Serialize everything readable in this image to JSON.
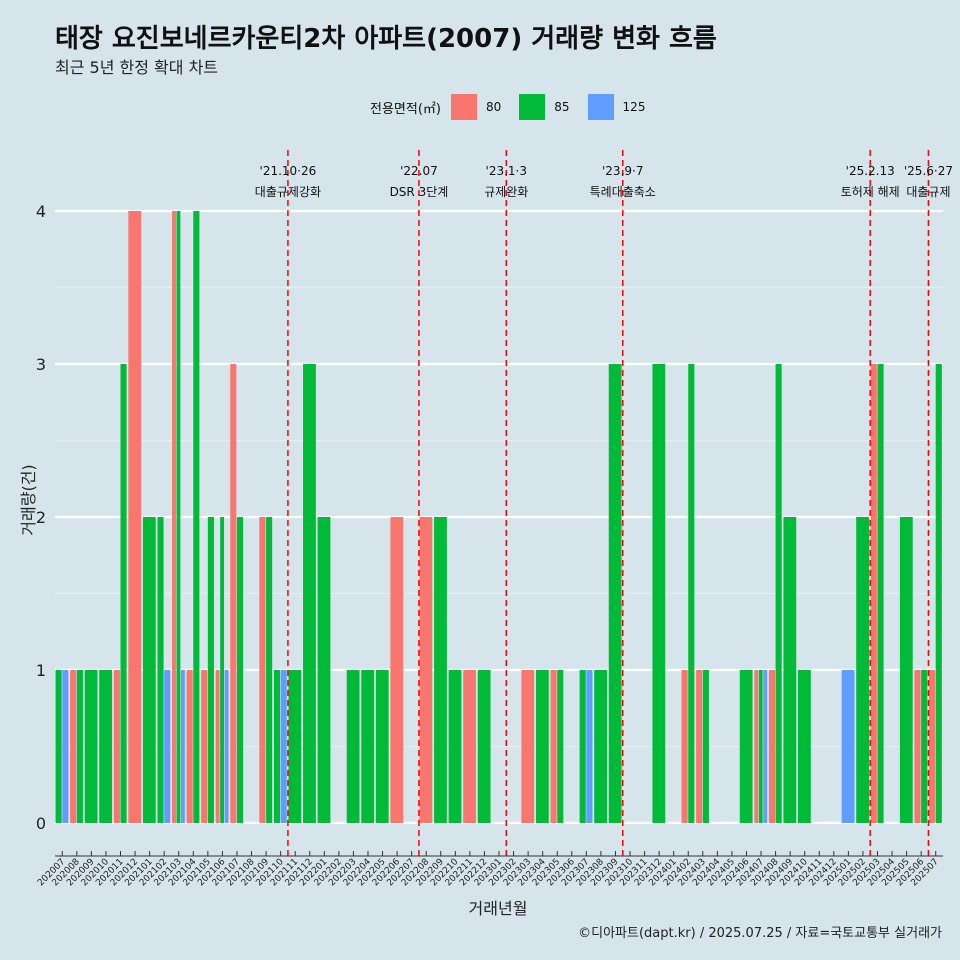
{
  "page": {
    "title": "태장 요진보네르카운티2차 아파트(2007) 거래량 변화 흐름",
    "subtitle": "최근 5년 한정 확대 차트",
    "caption": "©디아파트(dapt.kr) / 2025.07.25 / 자료=국토교통부 실거래가"
  },
  "legend": {
    "title": "전용면적(㎡)",
    "items": [
      {
        "name": "80",
        "color": "#F8766D"
      },
      {
        "name": "85",
        "color": "#00BA38"
      },
      {
        "name": "125",
        "color": "#619CFF"
      }
    ]
  },
  "chart_data": {
    "type": "bar",
    "stacking": "dodge",
    "xlabel": "거래년월",
    "ylabel": "거래량(건)",
    "ylim": [
      0,
      4
    ],
    "yticks": [
      0,
      1,
      2,
      3,
      4
    ],
    "grid": "horizontal major lines",
    "legend_position": "top",
    "categories": [
      "202007",
      "202008",
      "202009",
      "202010",
      "202011",
      "202012",
      "202101",
      "202102",
      "202103",
      "202104",
      "202105",
      "202106",
      "202107",
      "202108",
      "202109",
      "202110",
      "202111",
      "202112",
      "202201",
      "202202",
      "202203",
      "202204",
      "202205",
      "202206",
      "202207",
      "202208",
      "202209",
      "202210",
      "202211",
      "202212",
      "202301",
      "202302",
      "202303",
      "202304",
      "202305",
      "202306",
      "202307",
      "202308",
      "202309",
      "202310",
      "202311",
      "202312",
      "202401",
      "202402",
      "202403",
      "202404",
      "202405",
      "202406",
      "202407",
      "202408",
      "202409",
      "202410",
      "202411",
      "202412",
      "202501",
      "202502",
      "202503",
      "202504",
      "202505",
      "202506",
      "202507"
    ],
    "bars": [
      {
        "month": "202007",
        "groups": [
          {
            "area": "85",
            "value": 1
          },
          {
            "area": "125",
            "value": 1
          }
        ]
      },
      {
        "month": "202008",
        "groups": [
          {
            "area": "80",
            "value": 1
          },
          {
            "area": "85",
            "value": 1
          }
        ]
      },
      {
        "month": "202009",
        "groups": [
          {
            "area": "85",
            "value": 1
          }
        ]
      },
      {
        "month": "202010",
        "groups": [
          {
            "area": "85",
            "value": 1
          }
        ]
      },
      {
        "month": "202011",
        "groups": [
          {
            "area": "80",
            "value": 1
          },
          {
            "area": "85",
            "value": 3
          }
        ]
      },
      {
        "month": "202012",
        "groups": [
          {
            "area": "80",
            "value": 4
          }
        ]
      },
      {
        "month": "202101",
        "groups": [
          {
            "area": "85",
            "value": 2
          }
        ]
      },
      {
        "month": "202102",
        "groups": [
          {
            "area": "85",
            "value": 2
          },
          {
            "area": "125",
            "value": 1
          }
        ]
      },
      {
        "month": "202103",
        "groups": [
          {
            "area": "80",
            "value": 4
          },
          {
            "area": "85",
            "value": 4
          },
          {
            "area": "125",
            "value": 1
          }
        ]
      },
      {
        "month": "202104",
        "groups": [
          {
            "area": "80",
            "value": 1
          },
          {
            "area": "85",
            "value": 4
          }
        ]
      },
      {
        "month": "202105",
        "groups": [
          {
            "area": "80",
            "value": 1
          },
          {
            "area": "85",
            "value": 2
          }
        ]
      },
      {
        "month": "202106",
        "groups": [
          {
            "area": "80",
            "value": 1
          },
          {
            "area": "85",
            "value": 2
          },
          {
            "area": "125",
            "value": 1
          }
        ]
      },
      {
        "month": "202107",
        "groups": [
          {
            "area": "80",
            "value": 3
          },
          {
            "area": "85",
            "value": 2
          }
        ]
      },
      {
        "month": "202108",
        "groups": []
      },
      {
        "month": "202109",
        "groups": [
          {
            "area": "80",
            "value": 2
          },
          {
            "area": "85",
            "value": 2
          }
        ]
      },
      {
        "month": "202110",
        "groups": [
          {
            "area": "85",
            "value": 1
          },
          {
            "area": "125",
            "value": 1
          }
        ]
      },
      {
        "month": "202111",
        "groups": [
          {
            "area": "85",
            "value": 1
          }
        ]
      },
      {
        "month": "202112",
        "groups": [
          {
            "area": "85",
            "value": 3
          }
        ]
      },
      {
        "month": "202201",
        "groups": [
          {
            "area": "85",
            "value": 2
          }
        ]
      },
      {
        "month": "202202",
        "groups": []
      },
      {
        "month": "202203",
        "groups": [
          {
            "area": "85",
            "value": 1
          }
        ]
      },
      {
        "month": "202204",
        "groups": [
          {
            "area": "85",
            "value": 1
          }
        ]
      },
      {
        "month": "202205",
        "groups": [
          {
            "area": "85",
            "value": 1
          }
        ]
      },
      {
        "month": "202206",
        "groups": [
          {
            "area": "80",
            "value": 2
          }
        ]
      },
      {
        "month": "202207",
        "groups": []
      },
      {
        "month": "202208",
        "groups": [
          {
            "area": "80",
            "value": 2
          }
        ]
      },
      {
        "month": "202209",
        "groups": [
          {
            "area": "85",
            "value": 2
          }
        ]
      },
      {
        "month": "202210",
        "groups": [
          {
            "area": "85",
            "value": 1
          }
        ]
      },
      {
        "month": "202211",
        "groups": [
          {
            "area": "80",
            "value": 1
          }
        ]
      },
      {
        "month": "202212",
        "groups": [
          {
            "area": "85",
            "value": 1
          }
        ]
      },
      {
        "month": "202301",
        "groups": []
      },
      {
        "month": "202302",
        "groups": []
      },
      {
        "month": "202303",
        "groups": [
          {
            "area": "80",
            "value": 1
          }
        ]
      },
      {
        "month": "202304",
        "groups": [
          {
            "area": "85",
            "value": 1
          }
        ]
      },
      {
        "month": "202305",
        "groups": [
          {
            "area": "80",
            "value": 1
          },
          {
            "area": "85",
            "value": 1
          }
        ]
      },
      {
        "month": "202306",
        "groups": []
      },
      {
        "month": "202307",
        "groups": [
          {
            "area": "85",
            "value": 1
          },
          {
            "area": "125",
            "value": 1
          }
        ]
      },
      {
        "month": "202308",
        "groups": [
          {
            "area": "85",
            "value": 1
          }
        ]
      },
      {
        "month": "202309",
        "groups": [
          {
            "area": "85",
            "value": 3
          }
        ]
      },
      {
        "month": "202310",
        "groups": []
      },
      {
        "month": "202311",
        "groups": []
      },
      {
        "month": "202312",
        "groups": [
          {
            "area": "85",
            "value": 3
          }
        ]
      },
      {
        "month": "202401",
        "groups": []
      },
      {
        "month": "202402",
        "groups": [
          {
            "area": "80",
            "value": 1
          },
          {
            "area": "85",
            "value": 3
          }
        ]
      },
      {
        "month": "202403",
        "groups": [
          {
            "area": "80",
            "value": 1
          },
          {
            "area": "85",
            "value": 1
          }
        ]
      },
      {
        "month": "202404",
        "groups": []
      },
      {
        "month": "202405",
        "groups": []
      },
      {
        "month": "202406",
        "groups": [
          {
            "area": "85",
            "value": 1
          }
        ]
      },
      {
        "month": "202407",
        "groups": [
          {
            "area": "80",
            "value": 1
          },
          {
            "area": "85",
            "value": 1
          },
          {
            "area": "125",
            "value": 1
          }
        ]
      },
      {
        "month": "202408",
        "groups": [
          {
            "area": "80",
            "value": 1
          },
          {
            "area": "85",
            "value": 3
          }
        ]
      },
      {
        "month": "202409",
        "groups": [
          {
            "area": "85",
            "value": 2
          }
        ]
      },
      {
        "month": "202410",
        "groups": [
          {
            "area": "85",
            "value": 1
          }
        ]
      },
      {
        "month": "202411",
        "groups": []
      },
      {
        "month": "202412",
        "groups": []
      },
      {
        "month": "202501",
        "groups": [
          {
            "area": "125",
            "value": 1
          }
        ]
      },
      {
        "month": "202502",
        "groups": [
          {
            "area": "85",
            "value": 2
          }
        ]
      },
      {
        "month": "202503",
        "groups": [
          {
            "area": "80",
            "value": 3
          },
          {
            "area": "85",
            "value": 3
          }
        ]
      },
      {
        "month": "202504",
        "groups": []
      },
      {
        "month": "202505",
        "groups": [
          {
            "area": "85",
            "value": 2
          }
        ]
      },
      {
        "month": "202506",
        "groups": [
          {
            "area": "80",
            "value": 1
          },
          {
            "area": "85",
            "value": 1
          }
        ]
      },
      {
        "month": "202507",
        "groups": [
          {
            "area": "80",
            "value": 1
          },
          {
            "area": "85",
            "value": 3
          }
        ]
      }
    ],
    "annotations": [
      {
        "month": "202110",
        "date": "'21.10·26",
        "label": "대출규제강화",
        "style": "dashed",
        "color": "#ff0000"
      },
      {
        "month": "202207",
        "date": "'22.07",
        "label": "DSR 3단계",
        "style": "dashed",
        "color": "#ff0000"
      },
      {
        "month": "202301",
        "date": "'23.1·3",
        "label": "규제완화",
        "style": "dashed",
        "color": "#ff0000"
      },
      {
        "month": "202309",
        "date": "'23.9·7",
        "label": "특례대출축소",
        "style": "dashed",
        "color": "#ff0000"
      },
      {
        "month": "202502",
        "date": "'25.2.13",
        "label": "토허제 해제",
        "style": "dashed",
        "color": "#ff0000"
      },
      {
        "month": "202506",
        "date": "'25.6·27",
        "label": "대출규제",
        "style": "dashed",
        "color": "#ff0000"
      }
    ]
  }
}
